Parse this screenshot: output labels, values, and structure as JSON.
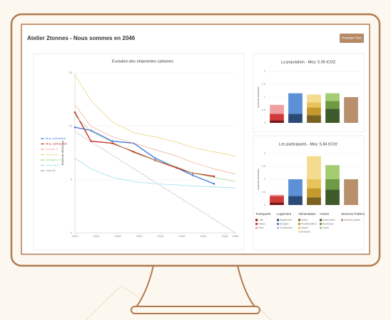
{
  "header": {
    "title": "Atelier 2tonnes - Nous sommes en 2046",
    "button": "Prochain Tour"
  },
  "chart_data": [
    {
      "type": "line",
      "title": "Evolution des empreintes carbones",
      "y_label": "Empreinte (tCO2e/an)",
      "xlim": [
        2020,
        2050
      ],
      "xticks": [
        2020,
        2024,
        2028,
        2032,
        2036,
        2040,
        2044,
        2048,
        2050
      ],
      "ylim": [
        0,
        15
      ],
      "yticks": [
        0,
        5,
        10,
        15
      ],
      "grid": true,
      "series": [
        {
          "name": "Moy. individuels",
          "color": "#4a7fdc",
          "width": 1.4,
          "markers": true,
          "x": [
            2020,
            2023,
            2027,
            2031,
            2035,
            2039,
            2042,
            2046
          ],
          "values": [
            9.9,
            9.6,
            8.6,
            8.4,
            7.0,
            6.1,
            5.4,
            4.6
          ]
        },
        {
          "name": "Moy. participants",
          "color": "#c8342c",
          "width": 1.4,
          "markers": true,
          "x": [
            2020,
            2023,
            2027,
            2031,
            2035,
            2039,
            2042,
            2046
          ],
          "values": [
            11.3,
            8.6,
            8.4,
            7.6,
            6.8,
            6.1,
            5.6,
            5.3
          ]
        },
        {
          "name": "Inactifs 2t",
          "color": "#f0a890",
          "width": 0.7,
          "markers": false,
          "x": [
            2020,
            2023,
            2027,
            2031,
            2035,
            2039,
            2042,
            2046,
            2050
          ],
          "values": [
            12.0,
            10.0,
            9.0,
            8.4,
            7.8,
            7.2,
            6.6,
            6.0,
            5.5
          ]
        },
        {
          "name": "Jeunesse",
          "color": "#e8d070",
          "width": 0.7,
          "markers": false,
          "x": [
            2020,
            2023,
            2027,
            2031,
            2035,
            2039,
            2042,
            2046,
            2050
          ],
          "values": [
            14.8,
            12.4,
            10.4,
            9.4,
            9.0,
            8.5,
            8.0,
            7.6,
            7.2
          ]
        },
        {
          "name": "Ménages 1%",
          "color": "#9fd08a",
          "width": 0.7,
          "markers": false,
          "x": [
            2020,
            2023,
            2027,
            2031,
            2035,
            2039,
            2042,
            2046,
            2050
          ],
          "values": [
            11.0,
            9.5,
            8.5,
            7.5,
            6.8,
            6.2,
            5.6,
            5.2,
            4.8
          ]
        },
        {
          "name": "Génération",
          "color": "#8fdcea",
          "width": 0.7,
          "markers": false,
          "x": [
            2020,
            2023,
            2027,
            2031,
            2035,
            2039,
            2042,
            2046,
            2050
          ],
          "values": [
            7.0,
            6.0,
            5.2,
            4.8,
            4.6,
            4.5,
            4.4,
            4.3,
            4.2
          ]
        },
        {
          "name": "Objectif",
          "color": "#999999",
          "width": 0.7,
          "markers": false,
          "dashed": true,
          "x": [
            2020,
            2050
          ],
          "values": [
            9.5,
            0
          ]
        }
      ]
    },
    {
      "type": "stacked_bar",
      "title": "La population - Moy: 5.05 tCO2",
      "y_label": "Empreinte (tCO2e/an)",
      "ylim": [
        0,
        2
      ],
      "yticks": [
        0,
        0.5,
        1,
        1.5,
        2
      ],
      "series": [
        {
          "color": "#7a1414",
          "values": [
            0.1,
            null,
            null,
            null,
            null
          ]
        },
        {
          "color": "#d03a3a",
          "values": [
            0.25,
            null,
            null,
            null,
            null
          ]
        },
        {
          "color": "#f0a0a0",
          "values": [
            0.35,
            null,
            null,
            null,
            null
          ]
        },
        {
          "color": "#2b4a75",
          "values": [
            null,
            0.35,
            null,
            null,
            null
          ]
        },
        {
          "color": "#5b8fd6",
          "values": [
            null,
            0.8,
            null,
            null,
            null
          ]
        },
        {
          "color": "#a8c4ea",
          "values": [
            null,
            0,
            null,
            null,
            null
          ]
        },
        {
          "color": "#7a6320",
          "values": [
            null,
            null,
            0.3,
            null,
            null
          ]
        },
        {
          "color": "#c49a2c",
          "values": [
            null,
            null,
            0.3,
            null,
            null
          ]
        },
        {
          "color": "#e8c25a",
          "values": [
            null,
            null,
            0.2,
            null,
            null
          ]
        },
        {
          "color": "#f3dc8e",
          "values": [
            null,
            null,
            0.3,
            null,
            null
          ]
        },
        {
          "color": "#3f5a2a",
          "values": [
            null,
            null,
            null,
            0.55,
            null
          ]
        },
        {
          "color": "#6f9a45",
          "values": [
            null,
            null,
            null,
            0.3,
            null
          ]
        },
        {
          "color": "#a4cc72",
          "values": [
            null,
            null,
            null,
            0.3,
            null
          ]
        },
        {
          "color": "#b8906c",
          "values": [
            null,
            null,
            null,
            null,
            1.0
          ]
        }
      ]
    },
    {
      "type": "stacked_bar",
      "title": "Les participants - Moy: 5.84 tCO2",
      "y_label": "Empreinte (tCO2e/an)",
      "ylim": [
        0,
        2
      ],
      "yticks": [
        0,
        0.5,
        1,
        1.5,
        2
      ],
      "categories": [
        "Transports",
        "Logement",
        "Alimentation",
        "Autres",
        "Services Publics"
      ],
      "series": [
        {
          "name": "Train",
          "color": "#7a1414",
          "values": [
            0.1,
            null,
            null,
            null,
            null
          ]
        },
        {
          "name": "Voiture",
          "color": "#d03a3a",
          "values": [
            0.25,
            null,
            null,
            null,
            null
          ]
        },
        {
          "name": "Avion",
          "color": "#f0a0a0",
          "values": [
            0.05,
            null,
            null,
            null,
            null
          ]
        },
        {
          "name": "Équipement",
          "color": "#2b4a75",
          "values": [
            null,
            0.35,
            null,
            null,
            null
          ]
        },
        {
          "name": "Énergies",
          "color": "#5b8fd6",
          "values": [
            null,
            0.65,
            null,
            null,
            null
          ]
        },
        {
          "name": "Construction",
          "color": "#a8c4ea",
          "values": [
            null,
            0,
            null,
            null,
            null
          ]
        },
        {
          "name": "Autres",
          "color": "#7a6320",
          "values": [
            null,
            null,
            0.3,
            null,
            null
          ]
        },
        {
          "name": "Produits laitiers",
          "color": "#c49a2c",
          "values": [
            null,
            null,
            0.35,
            null,
            null
          ]
        },
        {
          "name": "Viande",
          "color": "#e8c25a",
          "values": [
            null,
            null,
            0.35,
            null,
            null
          ]
        },
        {
          "name": "Boissons",
          "color": "#f3dc8e",
          "values": [
            null,
            null,
            0.9,
            null,
            null
          ]
        },
        {
          "name": "Autres biens",
          "color": "#3f5a2a",
          "values": [
            null,
            null,
            null,
            0.6,
            null
          ]
        },
        {
          "name": "Numérique",
          "color": "#6f9a45",
          "values": [
            null,
            null,
            null,
            0.4,
            null
          ]
        },
        {
          "name": "Loisirs",
          "color": "#a4cc72",
          "values": [
            null,
            null,
            null,
            0.55,
            null
          ]
        },
        {
          "name": "Services publics",
          "color": "#b8906c",
          "values": [
            null,
            null,
            null,
            null,
            1.0
          ]
        }
      ]
    }
  ]
}
